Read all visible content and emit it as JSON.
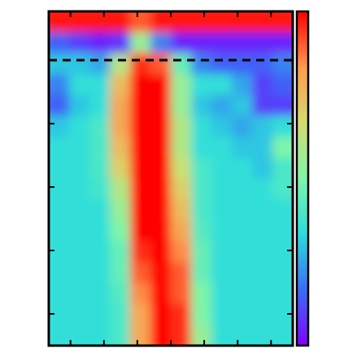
{
  "chart_data": {
    "type": "heatmap",
    "xlim": [
      -0.65,
      6.65
    ],
    "xticks": [
      0,
      1,
      2,
      3,
      4,
      5,
      6
    ],
    "ylim": [
      -0.5,
      4.77
    ],
    "yticks": [
      0,
      1,
      2,
      3,
      4
    ],
    "zlim": [
      0,
      1
    ],
    "colormap": [
      "#8000ff",
      "#3a6cf6",
      "#2adddd",
      "#7ef5a8",
      "#d4dc6e",
      "#ff9a4e",
      "#ff0000"
    ],
    "hline": 4,
    "z": [
      [
        0.98,
        0.98,
        0.98,
        0.98,
        0.9,
        0.98,
        0.98,
        0.98,
        0.98,
        0.98,
        0.98,
        0.98
      ],
      [
        0.15,
        0.1,
        0.05,
        0.08,
        0.55,
        0.2,
        0.05,
        0.05,
        0.05,
        0.05,
        0.05,
        0.05
      ],
      [
        0.3,
        0.3,
        0.25,
        0.6,
        0.95,
        0.9,
        0.45,
        0.2,
        0.15,
        0.15,
        0.15,
        0.2
      ],
      [
        0.2,
        0.35,
        0.35,
        0.75,
        1,
        1,
        0.55,
        0.35,
        0.35,
        0.25,
        0.1,
        0.15
      ],
      [
        0.15,
        0.3,
        0.35,
        0.8,
        1,
        1,
        0.55,
        0.3,
        0.25,
        0.3,
        0.1,
        0.1
      ],
      [
        0.3,
        0.35,
        0.4,
        0.8,
        1,
        1,
        0.6,
        0.35,
        0.3,
        0.25,
        0.3,
        0.35
      ],
      [
        0.35,
        0.35,
        0.4,
        0.75,
        1,
        1,
        0.6,
        0.35,
        0.35,
        0.3,
        0.3,
        0.5
      ],
      [
        0.35,
        0.35,
        0.4,
        0.7,
        1,
        1,
        0.65,
        0.4,
        0.35,
        0.35,
        0.3,
        0.4
      ],
      [
        0.35,
        0.35,
        0.38,
        0.6,
        1,
        1,
        0.7,
        0.4,
        0.35,
        0.35,
        0.35,
        0.4
      ],
      [
        0.35,
        0.35,
        0.35,
        0.55,
        1,
        1,
        0.75,
        0.4,
        0.35,
        0.35,
        0.35,
        0.35
      ],
      [
        0.35,
        0.35,
        0.35,
        0.5,
        1,
        1,
        0.8,
        0.42,
        0.35,
        0.35,
        0.35,
        0.35
      ],
      [
        0.35,
        0.35,
        0.35,
        0.45,
        0.95,
        1,
        0.85,
        0.45,
        0.35,
        0.35,
        0.35,
        0.35
      ],
      [
        0.35,
        0.35,
        0.35,
        0.45,
        0.9,
        1,
        0.9,
        0.45,
        0.35,
        0.35,
        0.35,
        0.35
      ],
      [
        0.35,
        0.35,
        0.35,
        0.42,
        0.85,
        1,
        0.9,
        0.5,
        0.35,
        0.35,
        0.35,
        0.35
      ],
      [
        0.35,
        0.35,
        0.35,
        0.4,
        0.8,
        1,
        0.95,
        0.5,
        0.35,
        0.35,
        0.35,
        0.35
      ],
      [
        0.35,
        0.35,
        0.35,
        0.4,
        0.8,
        1,
        0.95,
        0.55,
        0.35,
        0.35,
        0.35,
        0.35
      ]
    ]
  }
}
